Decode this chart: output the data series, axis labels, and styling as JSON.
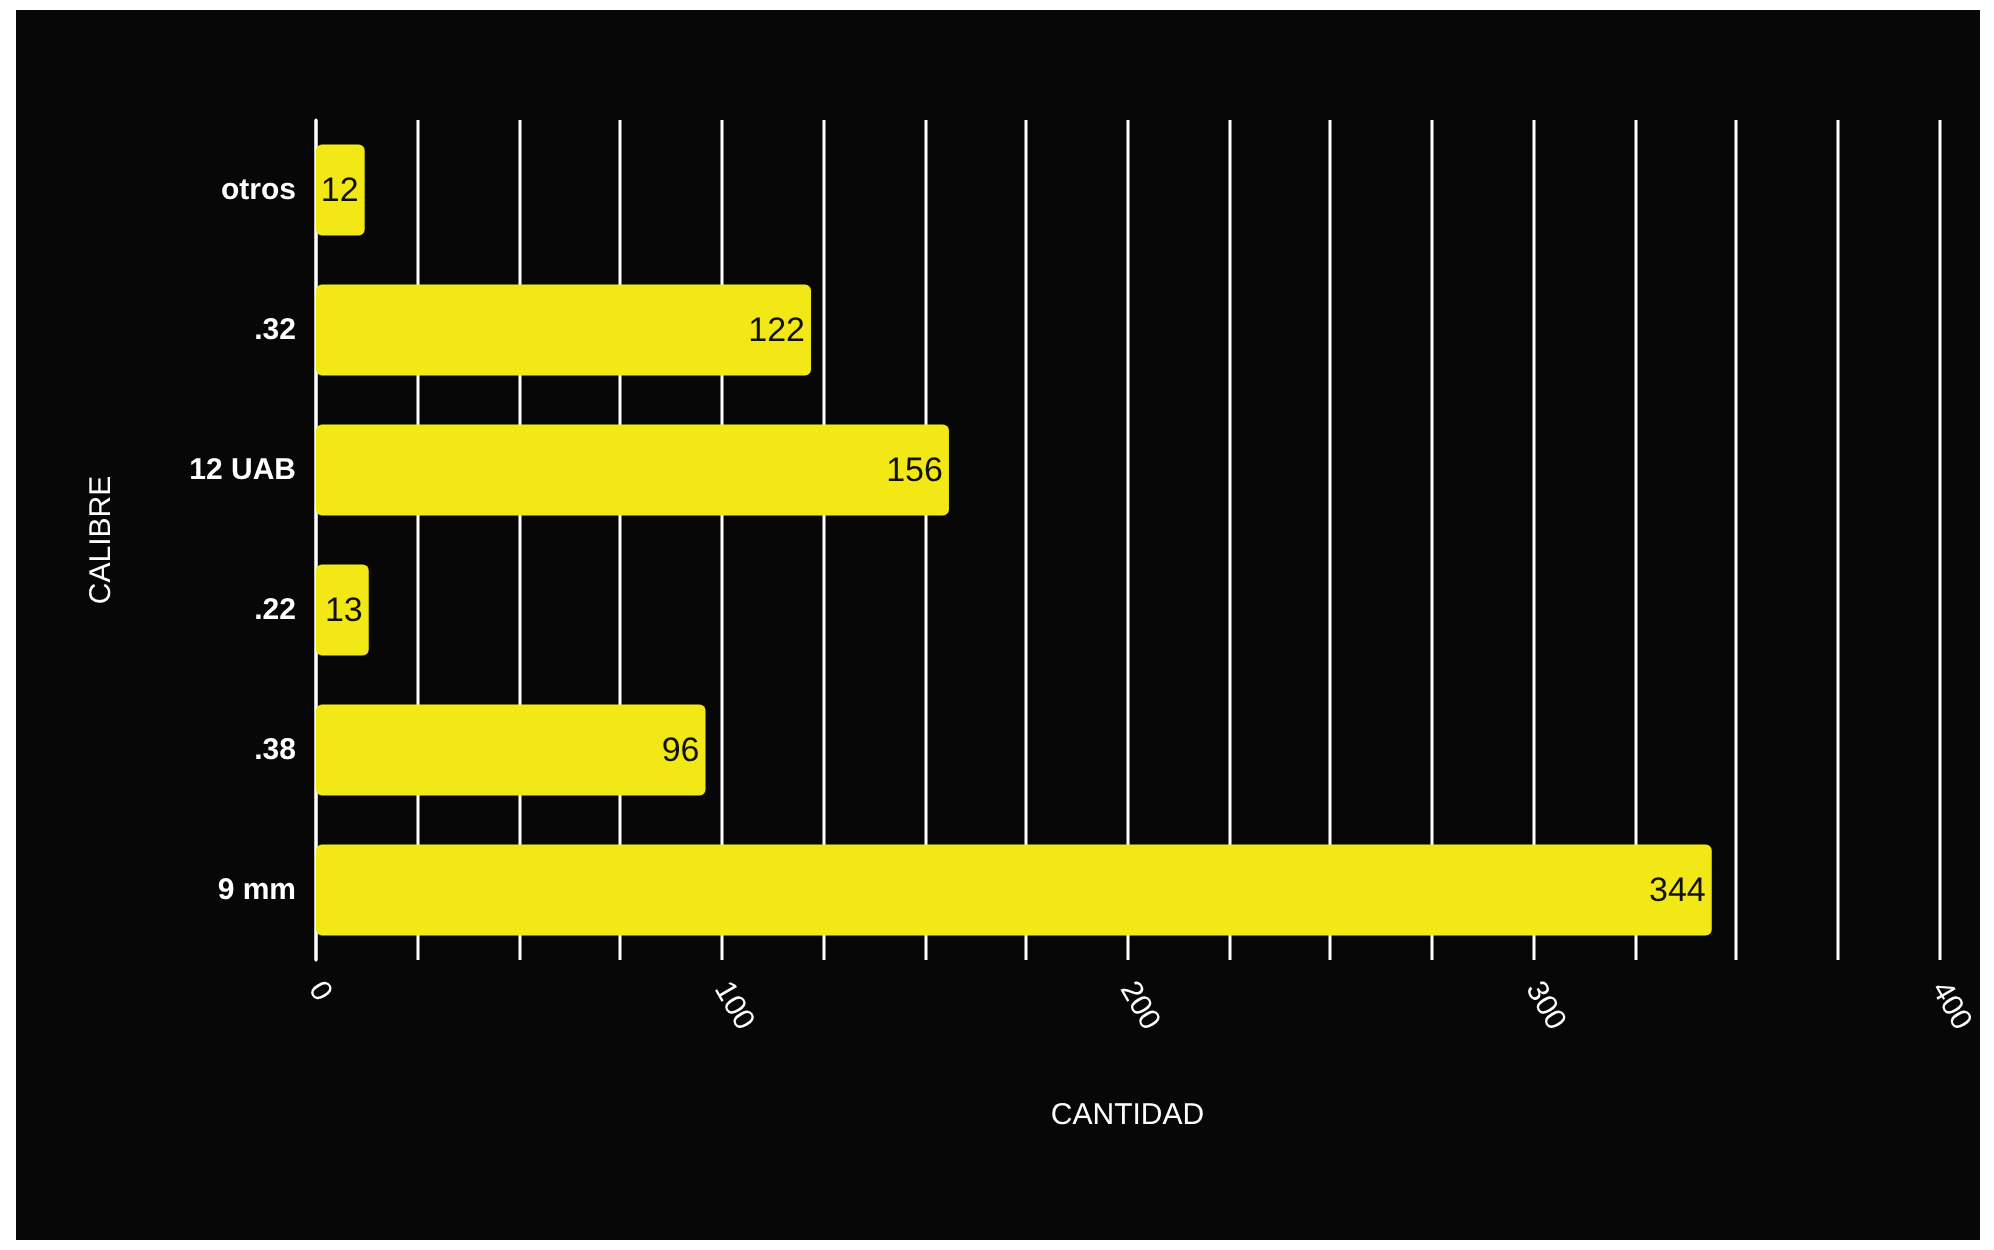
{
  "chart_data": {
    "type": "bar",
    "orientation": "horizontal",
    "xlabel": "CANTIDAD",
    "ylabel": "CALIBRE",
    "categories": [
      "otros",
      ".32",
      "12 UAB",
      ".22",
      ".38",
      "9 mm"
    ],
    "values": [
      12,
      122,
      156,
      13,
      96,
      344
    ],
    "color": "#f2e816",
    "data_labels": true,
    "grid": "x",
    "xlim": [
      0,
      400
    ],
    "xticks": [
      0,
      {
        "value": 25,
        "label": null
      },
      {
        "value": 50,
        "label": null
      },
      {
        "value": 75,
        "label": null
      },
      100,
      {
        "value": 125,
        "label": null
      },
      {
        "value": 150,
        "label": null
      },
      {
        "value": 175,
        "label": null
      },
      200,
      {
        "value": 225,
        "label": null
      },
      {
        "value": 250,
        "label": null
      },
      {
        "value": 275,
        "label": null
      },
      300,
      {
        "value": 325,
        "label": null
      },
      {
        "value": 350,
        "label": null
      },
      {
        "value": 375,
        "label": null
      },
      400
    ]
  }
}
